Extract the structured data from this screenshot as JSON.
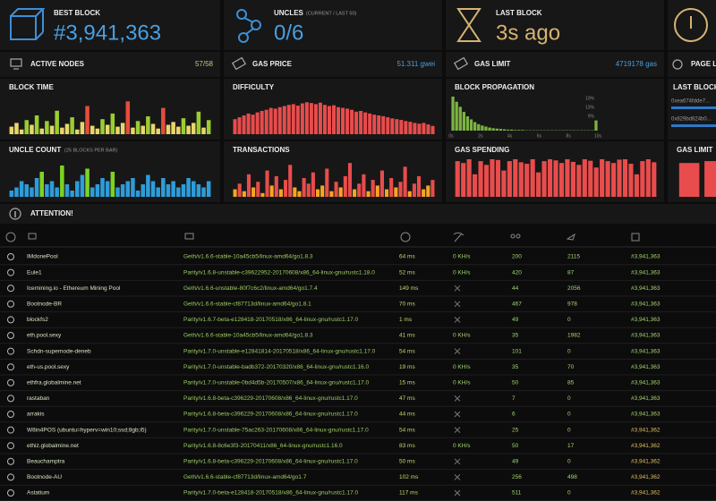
{
  "stats": [
    {
      "label": "BEST BLOCK",
      "value": "#3,941,363"
    },
    {
      "label": "UNCLES",
      "note": "(CURRENT / LAST 50)",
      "value": "0/6"
    },
    {
      "label": "LAST BLOCK",
      "value": "3s ago"
    }
  ],
  "info": [
    {
      "label": "ACTIVE NODES",
      "value": "57/58"
    },
    {
      "label": "GAS PRICE",
      "value": "51.311 gwei"
    },
    {
      "label": "GAS LIMIT",
      "value": "4719178 gas"
    },
    {
      "label": "PAGE L"
    }
  ],
  "charts": [
    {
      "title": "BLOCK TIME",
      "ylim": [
        0,
        40
      ],
      "palette": [
        "#e9d66b",
        "#9acd32",
        "#e74c3c"
      ],
      "values": [
        8,
        12,
        5,
        15,
        10,
        20,
        6,
        14,
        9,
        25,
        7,
        11,
        18,
        5,
        13,
        30,
        9,
        6,
        16,
        10,
        22,
        8,
        12,
        35,
        7,
        14,
        9,
        19,
        11,
        6,
        28,
        10,
        13,
        8,
        17,
        9,
        12,
        24,
        7,
        15
      ]
    },
    {
      "title": "DIFFICULTY",
      "ylim": [
        0,
        100
      ],
      "palette": [
        "#e84c4c"
      ],
      "values": [
        40,
        45,
        50,
        55,
        52,
        58,
        62,
        65,
        70,
        68,
        72,
        75,
        78,
        80,
        76,
        82,
        85,
        83,
        80,
        84,
        78,
        75,
        77,
        72,
        70,
        68,
        65,
        60,
        62,
        58,
        55,
        52,
        50,
        48,
        45,
        42,
        40,
        38,
        35,
        33,
        30,
        28,
        30,
        26,
        22
      ]
    },
    {
      "title": "BLOCK PROPAGATION",
      "ylim": [
        0,
        100
      ],
      "palette": [
        "#7cb342"
      ],
      "xlabels": [
        "0s",
        "2s",
        "4s",
        "6s",
        "8s",
        "10s"
      ],
      "ylabels": [
        "10%",
        "13%",
        "9%"
      ],
      "values": [
        100,
        85,
        70,
        55,
        42,
        33,
        25,
        19,
        15,
        12,
        9,
        7,
        6,
        5,
        4,
        3,
        3,
        2,
        2,
        2,
        1,
        1,
        1,
        1,
        1,
        1,
        1,
        1,
        1,
        1,
        1,
        1,
        1,
        1,
        1,
        1,
        1,
        1,
        1,
        30
      ]
    },
    {
      "title": "UNCLE COUNT",
      "subtitle": "(25 BLOCKS PER BAR)",
      "ylim": [
        0,
        12
      ],
      "palette": [
        "#2e9cd9",
        "#2e9cd9",
        "#7ed321"
      ],
      "values": [
        2,
        3,
        5,
        4,
        3,
        6,
        8,
        4,
        5,
        3,
        10,
        4,
        2,
        5,
        7,
        9,
        3,
        4,
        6,
        5,
        8,
        3,
        4,
        5,
        6,
        2,
        4,
        7,
        5,
        3,
        6,
        4,
        5,
        3,
        4,
        6,
        5,
        4,
        3,
        5
      ]
    },
    {
      "title": "TRANSACTIONS",
      "ylim": [
        0,
        100
      ],
      "palette": [
        "#f5a623",
        "#e84c4c",
        "#e84c4c"
      ],
      "values": [
        20,
        35,
        15,
        60,
        25,
        40,
        10,
        70,
        30,
        55,
        20,
        45,
        85,
        25,
        15,
        50,
        35,
        65,
        20,
        30,
        75,
        15,
        40,
        25,
        55,
        90,
        20,
        35,
        60,
        15,
        45,
        30,
        70,
        20,
        50,
        25,
        40,
        80,
        15,
        35,
        55,
        20,
        30,
        45
      ]
    },
    {
      "title": "GAS SPENDING",
      "ylim": [
        0,
        100
      ],
      "palette": [
        "#e84c4c"
      ],
      "values": [
        95,
        90,
        100,
        60,
        95,
        85,
        100,
        98,
        70,
        95,
        100,
        92,
        88,
        100,
        65,
        95,
        100,
        97,
        90,
        100,
        93,
        85,
        100,
        96,
        78,
        100,
        95,
        90,
        99,
        100,
        88,
        60,
        95,
        100,
        92
      ]
    },
    {
      "title": "GAS LIMIT",
      "ylim": [
        0,
        100
      ],
      "palette": [
        "#e84c4c"
      ],
      "values": [
        90,
        95,
        80,
        100,
        85,
        95,
        90,
        100
      ]
    }
  ],
  "miners": {
    "title": "LAST BLOCK",
    "items": [
      "0xea674fdde7...",
      "0x829bd824b0..."
    ]
  },
  "attention": "ATTENTION!",
  "nodes": [
    {
      "name": "IMdonePool",
      "client": "Geth/v1.6.6-stable-10a45cb5/linux-amd64/go1.8.3",
      "latency": "64 ms",
      "hashrate": "0 KH/s",
      "peers": 200,
      "pending": 2115,
      "block": "#3,941,363"
    },
    {
      "name": "Eule1",
      "client": "Parity/v1.6.8-unstable-c39622952-20170608/x86_64-linux-gnu/rustc1.18.0",
      "latency": "52 ms",
      "hashrate": "0 KH/s",
      "peers": 420,
      "pending": 87,
      "block": "#3,941,363"
    },
    {
      "name": "Icemining.io - Ethereum Mining Pool",
      "client": "Geth/v1.6.6-unstable-80f7c6c2/linux-amd64/go1.7.4",
      "latency": "149 ms",
      "peers": 44,
      "pending": 2056,
      "block": "#3,941,363"
    },
    {
      "name": "Bootnode-BR",
      "client": "Geth/v1.6.6-stable-cf87713d/linux-amd64/go1.8.1",
      "latency": "70 ms",
      "peers": 467,
      "pending": 978,
      "block": "#3,941,363"
    },
    {
      "name": "blockfs2",
      "client": "Parity/v1.6.7-beta-e128418-20170518/x86_64-linux-gnu/rustc1.17.0",
      "latency": "1 ms",
      "peers": 49,
      "pending": 0,
      "block": "#3,941,363"
    },
    {
      "name": "eth.pool.sexy",
      "client": "Geth/v1.6.6-stable-10a45cb5/linux-amd64/go1.8.3",
      "latency": "41 ms",
      "hashrate": "0 KH/s",
      "peers": 35,
      "pending": 1982,
      "block": "#3,941,363"
    },
    {
      "name": "Schdn-supernode-deneb",
      "client": "Parity/v1.7.0-unstable-e12841814-20170518/x86_64-linux-gnu/rustc1.17.0",
      "latency": "54 ms",
      "peers": 101,
      "pending": 0,
      "block": "#3,941,363"
    },
    {
      "name": "eth-us.pool.sexy",
      "client": "Parity/v1.7.0-unstable-badb372-20170320/x86_64-linux-gnu/rustc1.16.0",
      "latency": "19 ms",
      "hashrate": "0 KH/s",
      "peers": 35,
      "pending": 70,
      "block": "#3,941,363"
    },
    {
      "name": "ethfra.globalmine.net",
      "client": "Parity/v1.7.0-unstable-0bd4d5b-20170507/x86_64-linux-gnu/rustc1.17.0",
      "latency": "15 ms",
      "hashrate": "0 KH/s",
      "peers": 50,
      "pending": 85,
      "block": "#3,941,363"
    },
    {
      "name": "rastaban",
      "client": "Parity/v1.6.8-beta-c396229-20170608/x86_64-linux-gnu/rustc1.17.0",
      "latency": "47 ms",
      "peers": 7,
      "pending": 0,
      "block": "#3,941,363"
    },
    {
      "name": "arrakis",
      "client": "Parity/v1.6.8-beta-c396229-20170608/x86_64-linux-gnu/rustc1.17.0",
      "latency": "44 ms",
      "peers": 6,
      "pending": 0,
      "block": "#3,941,363"
    },
    {
      "name": "W8in4POS (ubuntu=hyperv=win10;ssd;8gb;i5)",
      "client": "Parity/v1.7.0-unstable-75ac263-20170608/x86_64-linux-gnu/rustc1.17.0",
      "latency": "54 ms",
      "peers": 25,
      "pending": 0,
      "block": "#3,941,362"
    },
    {
      "name": "ethiz.globalmine.net",
      "client": "Parity/v1.6.8-8c6e3f3-20170411/x86_64-linux-gnu/rustc1.16.0",
      "latency": "83 ms",
      "hashrate": "0 KH/s",
      "peers": 50,
      "pending": 17,
      "block": "#3,941,362"
    },
    {
      "name": "Beauchamptra",
      "client": "Parity/v1.6.8-beta-c396229-20170608/x86_64-linux-gnu/rustc1.17.0",
      "latency": "50 ms",
      "peers": 49,
      "pending": 0,
      "block": "#3,941,362"
    },
    {
      "name": "Bootnode-AU",
      "client": "Geth/v1.6.6-stable-cf87713d/linux-amd64/go1.7",
      "latency": "102 ms",
      "peers": 256,
      "pending": 498,
      "block": "#3,941,362"
    },
    {
      "name": "Astatium",
      "client": "Parity/v1.7.0-beta-e128418-20170518/x86_64-linux-gnu/rustc1.17.0",
      "latency": "117 ms",
      "peers": 511,
      "pending": 0,
      "block": "#3,941,362"
    }
  ]
}
